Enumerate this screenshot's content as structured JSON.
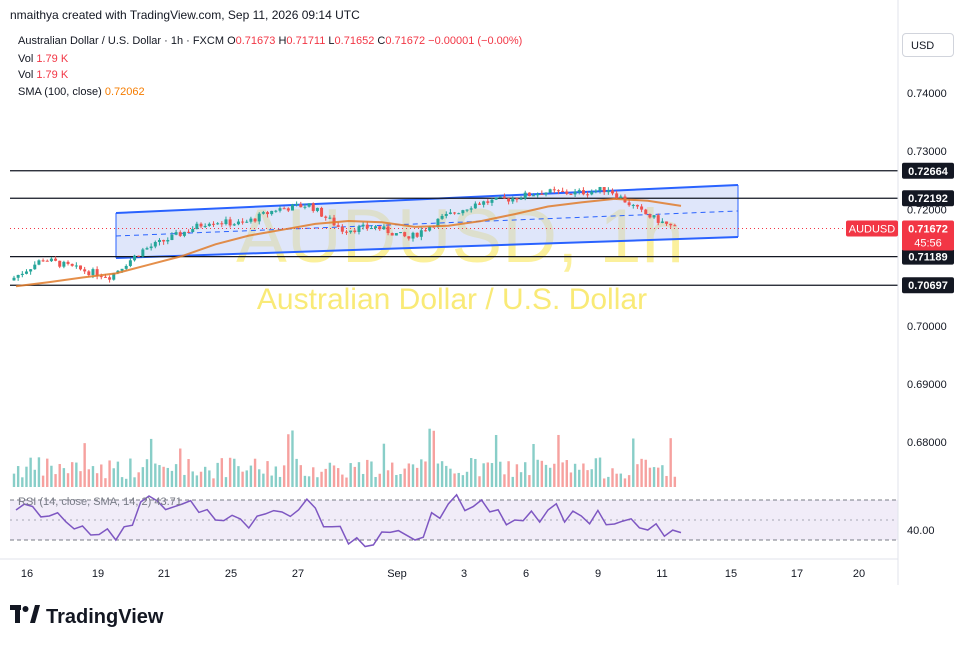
{
  "header": {
    "attribution": "nmaithya created with TradingView.com, Sep 11, 2026 09:14 UTC"
  },
  "legend": {
    "symbol_line": "Australian Dollar / U.S. Dollar · 1h · FXCM",
    "open_label": "O",
    "open": "0.71673",
    "high_label": "H",
    "high": "0.71711",
    "low_label": "L",
    "low": "0.71652",
    "close_label": "C",
    "close": "0.71672",
    "change": "−0.00001 (−0.00%)",
    "vol1_label": "Vol",
    "vol1_value": "1.79 K",
    "vol2_label": "Vol",
    "vol2_value": "1.79 K",
    "sma_label": "SMA (100, close)",
    "sma_value": "0.72062"
  },
  "currency_button": "USD",
  "watermark": {
    "ticker": "AUDUSD, 1h",
    "name": "Australian Dollar / U.S. Dollar"
  },
  "price_scale": {
    "ticks": [
      "0.74000",
      "0.73000",
      "0.72000",
      "0.70000",
      "0.69000",
      "0.68000"
    ],
    "rsi_tick": "40.00"
  },
  "price_badges": [
    {
      "label": "0.72664",
      "value": 0.72664,
      "style": "level"
    },
    {
      "label": "0.72192",
      "value": 0.72192,
      "style": "level"
    },
    {
      "label": "0.71189",
      "value": 0.71189,
      "style": "level"
    },
    {
      "label": "0.70697",
      "value": 0.70697,
      "style": "level"
    }
  ],
  "current_price": {
    "symbol": "AUDUSD",
    "price": "0.71672",
    "countdown": "45:56",
    "value": 0.71672
  },
  "rsi_legend": "RSI (14, close, SMA, 14, 2)  43.71",
  "time_axis": {
    "labels": [
      "16",
      "19",
      "21",
      "25",
      "27",
      "Sep",
      "3",
      "6",
      "9",
      "11",
      "15",
      "17",
      "20"
    ]
  },
  "footer": {
    "brand": "TradingView"
  },
  "colors": {
    "up": "#26a69a",
    "down": "#ef5350",
    "channel": "#2962ff",
    "channel_fill": "#c5d1f5",
    "sma": "#e07b2a",
    "sma_early": "#f0922e",
    "level": "#131722",
    "rsi": "#7e57c2",
    "price_badge": "#f23645",
    "watermark": "#f7e34a"
  },
  "chart_data": {
    "type": "line",
    "title": "Australian Dollar / U.S. Dollar · 1h · FXCM",
    "xlabel": "",
    "ylabel": "",
    "x_ticks": [
      "16",
      "19",
      "21",
      "25",
      "27",
      "Sep",
      "3",
      "6",
      "9",
      "11",
      "15",
      "17",
      "20"
    ],
    "ylim": [
      0.675,
      0.748
    ],
    "grid": false,
    "series": [
      {
        "name": "AUDUSD",
        "x": [
          "16",
          "17",
          "18",
          "19",
          "20",
          "21",
          "22",
          "25",
          "26",
          "27",
          "28",
          "Sep",
          "2",
          "3",
          "4",
          "6",
          "7",
          "8",
          "9",
          "10",
          "11"
        ],
        "values": [
          0.7078,
          0.7115,
          0.7098,
          0.7085,
          0.713,
          0.7155,
          0.718,
          0.7175,
          0.72,
          0.7208,
          0.7165,
          0.717,
          0.715,
          0.7185,
          0.721,
          0.7218,
          0.723,
          0.7228,
          0.7235,
          0.7195,
          0.7167
        ]
      },
      {
        "name": "SMA (100, close)",
        "x": [
          "16",
          "17",
          "18",
          "19",
          "20",
          "21",
          "22",
          "25",
          "26",
          "27",
          "28",
          "Sep",
          "2",
          "3",
          "4",
          "6",
          "7",
          "8",
          "9",
          "10",
          "11"
        ],
        "values": [
          0.7068,
          0.7075,
          0.7083,
          0.709,
          0.7105,
          0.712,
          0.714,
          0.7155,
          0.7165,
          0.7175,
          0.718,
          0.7178,
          0.717,
          0.7172,
          0.718,
          0.7192,
          0.7205,
          0.7212,
          0.7218,
          0.7215,
          0.7206
        ]
      }
    ],
    "levels": [
      0.72664,
      0.72192,
      0.71189,
      0.70697
    ],
    "rsi": {
      "name": "RSI (14, close, SMA, 14, 2)",
      "value": 43.71,
      "x": [
        "16",
        "17",
        "18",
        "19",
        "20",
        "21",
        "22",
        "25",
        "26",
        "27",
        "28",
        "Sep",
        "2",
        "3",
        "4",
        "6",
        "7",
        "8",
        "9",
        "10",
        "11"
      ],
      "values": [
        55,
        52,
        47,
        40,
        62,
        58,
        50,
        46,
        54,
        56,
        38,
        44,
        40,
        58,
        60,
        50,
        55,
        52,
        48,
        45,
        43.71
      ]
    }
  }
}
